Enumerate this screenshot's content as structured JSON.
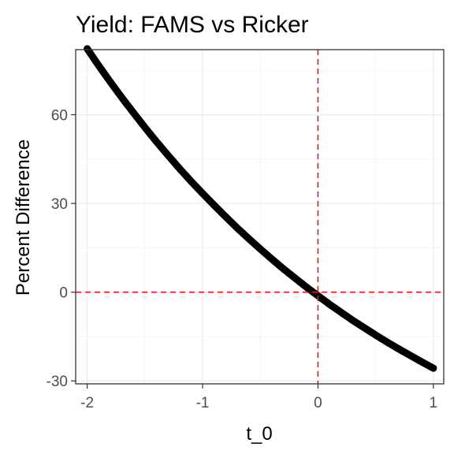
{
  "chart_data": {
    "type": "scatter",
    "title": "Yield: FAMS vs Ricker",
    "xlabel": "t_0",
    "ylabel": "Percent Difference",
    "xlim": [
      -2.1,
      1.09
    ],
    "ylim": [
      -31,
      82
    ],
    "x_ticks": [
      {
        "value": -2,
        "label": "-2"
      },
      {
        "value": -1,
        "label": "-1"
      },
      {
        "value": 0,
        "label": "0"
      },
      {
        "value": 1,
        "label": "1"
      }
    ],
    "y_ticks": [
      {
        "value": -30,
        "label": "-30"
      },
      {
        "value": 0,
        "label": "0"
      },
      {
        "value": 30,
        "label": "30"
      },
      {
        "value": 60,
        "label": "60"
      }
    ],
    "grid": true,
    "reference_lines": [
      {
        "axis": "x",
        "value": 0,
        "color": "#e31a1c",
        "style": "dashed"
      },
      {
        "axis": "y",
        "value": 0,
        "color": "#e31a1c",
        "style": "dashed"
      }
    ],
    "series": [
      {
        "color": "#000000",
        "x": [
          -2,
          -1.9,
          -1.8,
          -1.7,
          -1.6,
          -1.5,
          -1.4,
          -1.3,
          -1.2,
          -1.1,
          -1,
          -0.9,
          -0.8,
          -0.7,
          -0.6,
          -0.5,
          -0.4,
          -0.3,
          -0.2,
          -0.1,
          0,
          0.1,
          0.2,
          0.3,
          0.4,
          0.5,
          0.6,
          0.7,
          0.8,
          0.9,
          1
        ],
        "values": [
          82.3,
          76.6,
          71.1,
          65.8,
          60.7,
          55.7,
          50.9,
          46.3,
          41.8,
          37.5,
          33.4,
          29.4,
          25.5,
          21.7,
          18.1,
          14.6,
          11.2,
          7.9,
          4.8,
          1.7,
          -1.2,
          -4.1,
          -6.8,
          -9.5,
          -12.0,
          -14.5,
          -16.9,
          -19.2,
          -21.4,
          -23.6,
          -25.7
        ]
      }
    ]
  }
}
